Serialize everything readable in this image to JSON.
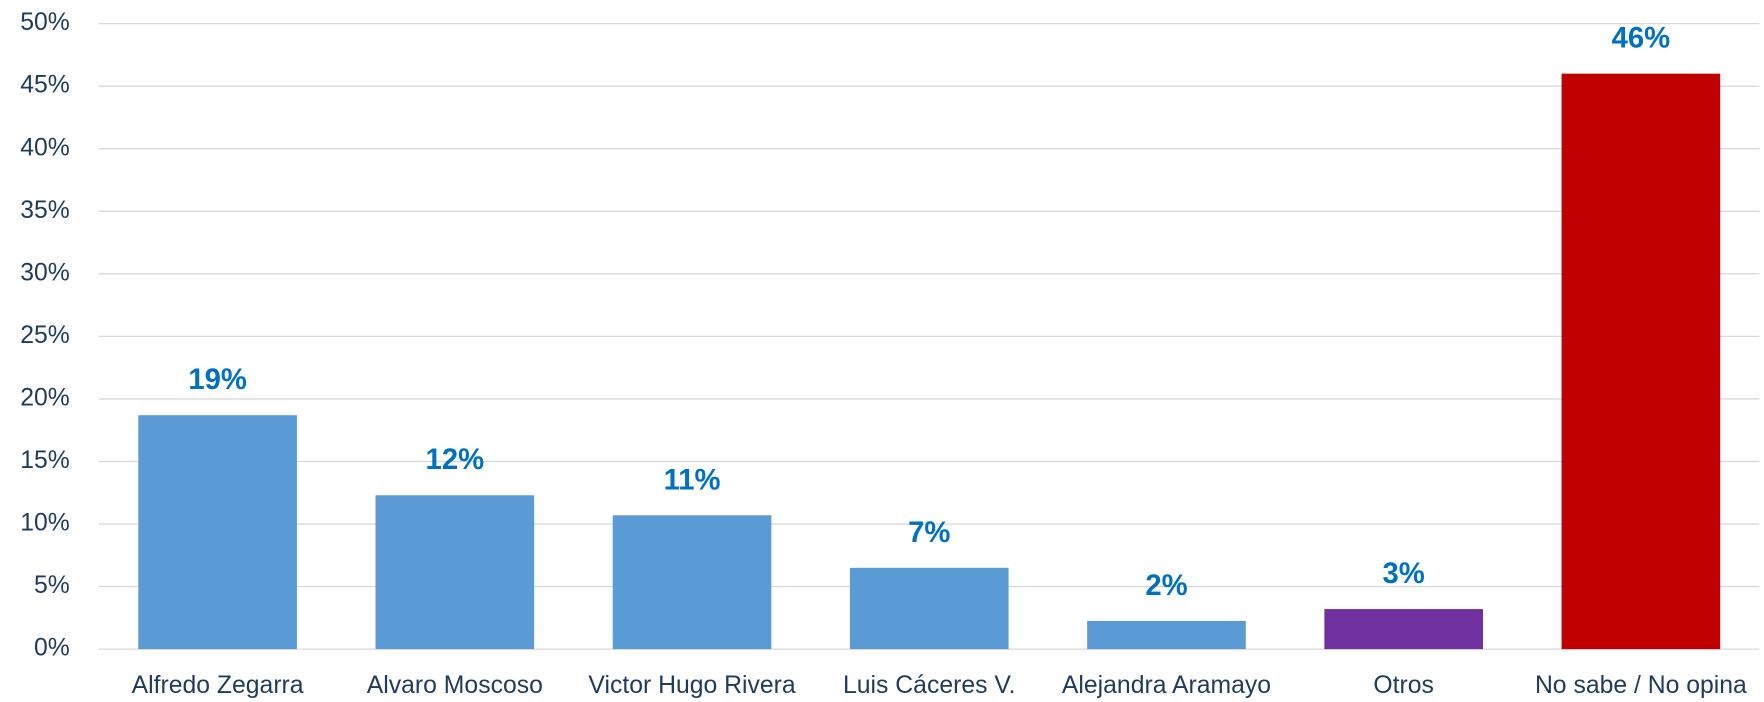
{
  "chart_data": {
    "type": "bar",
    "categories": [
      "Alfredo Zegarra",
      "Alvaro Moscoso",
      "Victor Hugo Rivera",
      "Luis Cáceres V.",
      "Alejandra Aramayo",
      "Otros",
      "No sabe / No opina"
    ],
    "values": [
      18.7,
      12.3,
      10.7,
      6.5,
      2.25,
      3.2,
      46.0
    ],
    "value_labels": [
      "19%",
      "12%",
      "11%",
      "7%",
      "2%",
      "3%",
      "46%"
    ],
    "colors": [
      "#5b9bd5",
      "#5b9bd5",
      "#5b9bd5",
      "#5b9bd5",
      "#5b9bd5",
      "#7030a0",
      "#c00000"
    ],
    "ylim": [
      0,
      50
    ],
    "yticks": [
      {
        "value": 0,
        "label": "0%"
      },
      {
        "value": 5,
        "label": "5%"
      },
      {
        "value": 10,
        "label": "10%"
      },
      {
        "value": 15,
        "label": "15%"
      },
      {
        "value": 20,
        "label": "20%"
      },
      {
        "value": 25,
        "label": "25%"
      },
      {
        "value": 30,
        "label": "30%"
      },
      {
        "value": 35,
        "label": "35%"
      },
      {
        "value": 40,
        "label": "40%"
      },
      {
        "value": 45,
        "label": "45%"
      },
      {
        "value": 50,
        "label": "50%"
      }
    ],
    "grid": true
  }
}
